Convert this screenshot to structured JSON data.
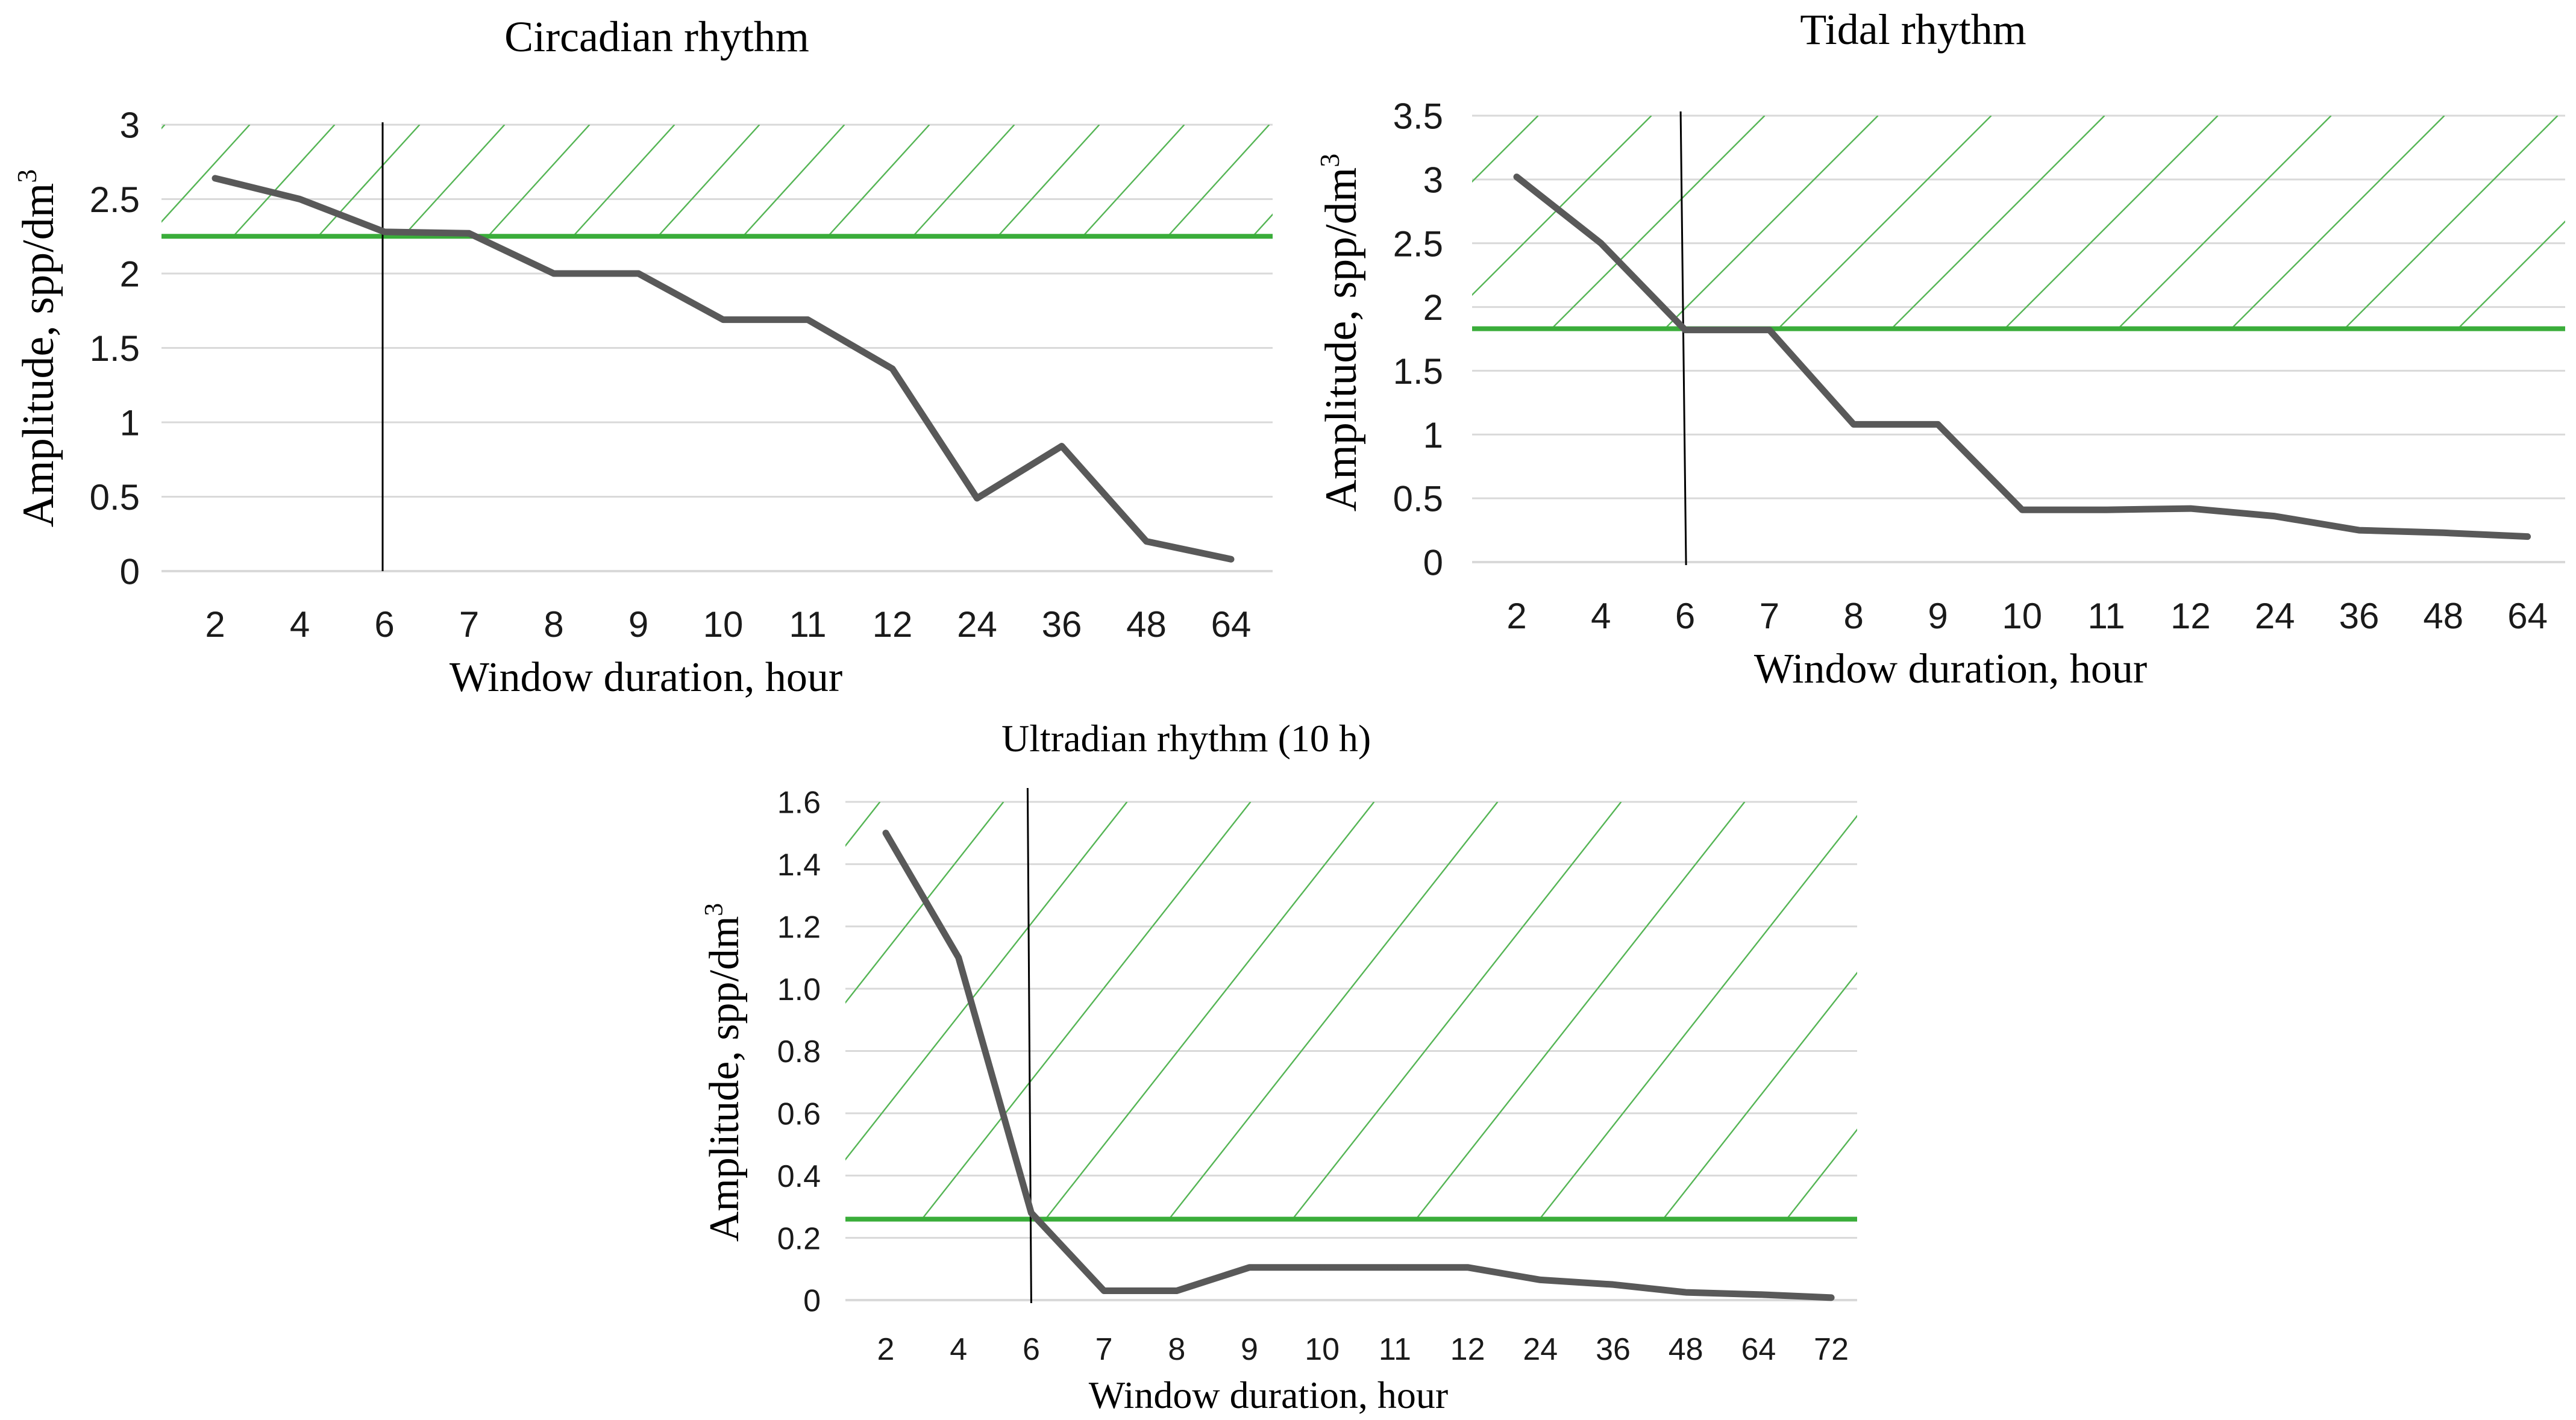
{
  "colors": {
    "series": "#595959",
    "threshold": "#3aad3a",
    "hatch": "#55b555",
    "grid": "#d9d9d9",
    "marker": "#000000"
  },
  "chart_data": [
    {
      "type": "line",
      "title": "Circadian rhythm",
      "xlabel": "Window duration, hour",
      "ylabel": "Amplitude, spp/dm",
      "ylabel_sup": "3",
      "categories": [
        "2",
        "4",
        "6",
        "7",
        "8",
        "9",
        "10",
        "11",
        "12",
        "24",
        "36",
        "48",
        "64"
      ],
      "values": [
        2.64,
        2.5,
        2.28,
        2.27,
        2.0,
        2.0,
        1.69,
        1.69,
        1.36,
        0.49,
        0.84,
        0.2,
        0.08
      ],
      "ylim": [
        0,
        3
      ],
      "yticks": [
        "0",
        "0.5",
        "1",
        "1.5",
        "2",
        "2.5",
        "3"
      ],
      "ytick_values": [
        0,
        0.5,
        1,
        1.5,
        2,
        2.5,
        3
      ],
      "threshold": 2.25,
      "marker_category_index": 2,
      "grid": true,
      "hatched_region": "above-threshold"
    },
    {
      "type": "line",
      "title": "Tidal rhythm",
      "xlabel": "Window duration, hour",
      "ylabel": "Amplitude, spp/dm",
      "ylabel_sup": "3",
      "categories": [
        "2",
        "4",
        "6",
        "7",
        "8",
        "9",
        "10",
        "11",
        "12",
        "24",
        "36",
        "48",
        "64"
      ],
      "values": [
        3.02,
        2.5,
        1.82,
        1.82,
        1.08,
        1.08,
        0.41,
        0.41,
        0.42,
        0.36,
        0.25,
        0.23,
        0.2
      ],
      "ylim": [
        0,
        3.5
      ],
      "yticks": [
        "0",
        "0.5",
        "1",
        "1.5",
        "2",
        "2.5",
        "3",
        "3.5"
      ],
      "ytick_values": [
        0,
        0.5,
        1,
        1.5,
        2,
        2.5,
        3,
        3.5
      ],
      "threshold": 1.83,
      "marker_category_index": 2,
      "grid": true,
      "hatched_region": "above-threshold"
    },
    {
      "type": "line",
      "title": "Ultradian rhythm (10 h)",
      "xlabel": "Window duration, hour",
      "ylabel": "Amplitude, spp/dm",
      "ylabel_sup": "3",
      "categories": [
        "2",
        "4",
        "6",
        "7",
        "8",
        "9",
        "10",
        "11",
        "12",
        "24",
        "36",
        "48",
        "64",
        "72"
      ],
      "values": [
        1.5,
        1.1,
        0.28,
        0.03,
        0.03,
        0.105,
        0.105,
        0.105,
        0.105,
        0.065,
        0.05,
        0.025,
        0.018,
        0.008
      ],
      "ylim": [
        0,
        1.6
      ],
      "yticks": [
        "0",
        "0.2",
        "0.4",
        "0.6",
        "0.8",
        "1.0",
        "1.2",
        "1.4",
        "1.6"
      ],
      "ytick_values": [
        0,
        0.2,
        0.4,
        0.6,
        0.8,
        1.0,
        1.2,
        1.4,
        1.6
      ],
      "threshold": 0.26,
      "marker_category_index": 2,
      "grid": true,
      "hatched_region": "above-threshold"
    }
  ]
}
